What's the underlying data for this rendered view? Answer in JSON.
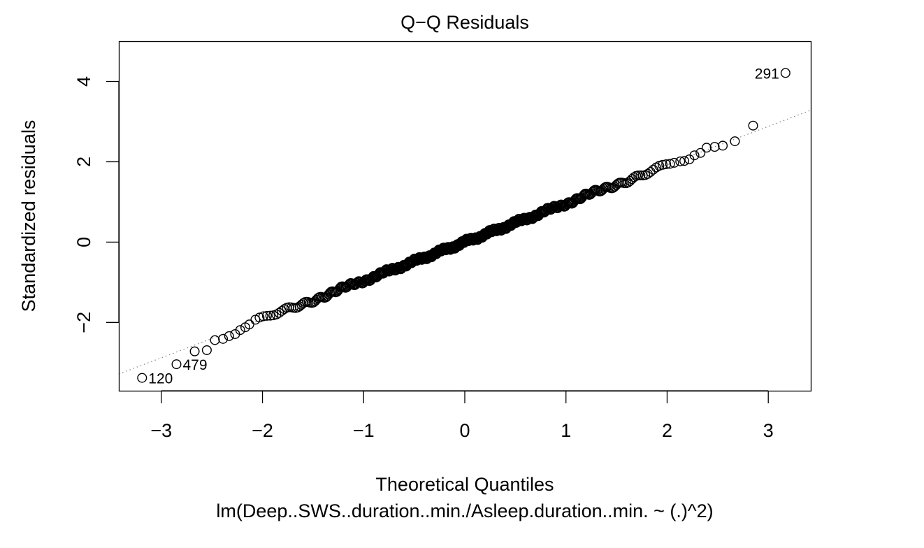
{
  "chart_data": {
    "type": "scatter",
    "title": "Q−Q Residuals",
    "xlabel": "Theoretical Quantiles",
    "ylabel": "Standardized residuals",
    "subtitle": "lm(Deep..SWS..duration..min./Asleep.duration..min. ~ (.)^2)",
    "xlim": [
      -3.42,
      3.42
    ],
    "ylim": [
      -3.7,
      5.0
    ],
    "x_ticks": [
      {
        "value": -3,
        "label": "−3"
      },
      {
        "value": -2,
        "label": "−2"
      },
      {
        "value": -1,
        "label": "−1"
      },
      {
        "value": 0,
        "label": "0"
      },
      {
        "value": 1,
        "label": "1"
      },
      {
        "value": 2,
        "label": "2"
      },
      {
        "value": 3,
        "label": "3"
      }
    ],
    "y_ticks": [
      {
        "value": -2,
        "label": "−2"
      },
      {
        "value": 0,
        "label": "0"
      },
      {
        "value": 2,
        "label": "2"
      },
      {
        "value": 4,
        "label": "4"
      }
    ],
    "grid": false,
    "reference_line": {
      "intercept": 0.0,
      "slope": 0.96,
      "style": "dotted",
      "color": "#808080"
    },
    "n_points": 500,
    "outlier_points": [
      {
        "x": -3.19,
        "y": -3.38,
        "label": "120"
      },
      {
        "x": -2.85,
        "y": -3.04,
        "label": "479"
      },
      {
        "x": 3.17,
        "y": 4.21,
        "label": "291"
      }
    ],
    "points": [
      {
        "x": -2.67,
        "y": -2.72
      },
      {
        "x": -2.55,
        "y": -2.69
      },
      {
        "x": -2.47,
        "y": -2.44
      },
      {
        "x": -2.39,
        "y": -2.41
      },
      {
        "x": -2.33,
        "y": -2.34
      },
      {
        "x": -2.27,
        "y": -2.29
      },
      {
        "x": -2.22,
        "y": -2.19
      },
      {
        "x": -2.17,
        "y": -2.12
      },
      {
        "x": -2.13,
        "y": -2.05
      },
      {
        "x": 2.13,
        "y": 2.01
      },
      {
        "x": 2.17,
        "y": 2.02
      },
      {
        "x": 2.22,
        "y": 2.06
      },
      {
        "x": 2.27,
        "y": 2.16
      },
      {
        "x": 2.33,
        "y": 2.22
      },
      {
        "x": 2.39,
        "y": 2.35
      },
      {
        "x": 2.47,
        "y": 2.37
      },
      {
        "x": 2.55,
        "y": 2.4
      },
      {
        "x": 2.67,
        "y": 2.51
      },
      {
        "x": 2.85,
        "y": 2.9
      }
    ]
  }
}
